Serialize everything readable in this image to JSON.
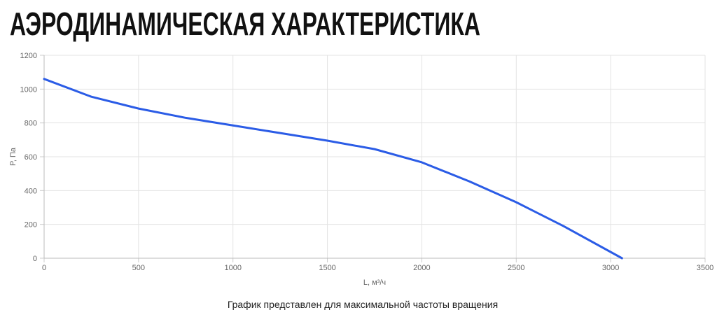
{
  "chart_data": {
    "type": "line",
    "title": "АЭРОДИНАМИЧЕСКАЯ ХАРАКТЕРИСТИКА",
    "caption": "График представлен для максимальной частоты вращения",
    "xlabel": "L, м³/ч",
    "ylabel": "P, Па",
    "x": [
      0,
      250,
      500,
      750,
      1000,
      1250,
      1500,
      1750,
      2000,
      2250,
      2500,
      2750,
      3060
    ],
    "series": [
      {
        "color": "#2b5ce6",
        "values": [
          1060,
          955,
          885,
          830,
          785,
          740,
          695,
          645,
          567,
          455,
          331,
          190,
          0
        ]
      }
    ],
    "xlim": [
      0,
      3500
    ],
    "xticks": [
      0,
      500,
      1000,
      1500,
      2000,
      2500,
      3000,
      3500
    ],
    "ylim": [
      0,
      1200
    ],
    "yticks": [
      0,
      200,
      400,
      600,
      800,
      1000,
      1200
    ],
    "grid": true
  }
}
